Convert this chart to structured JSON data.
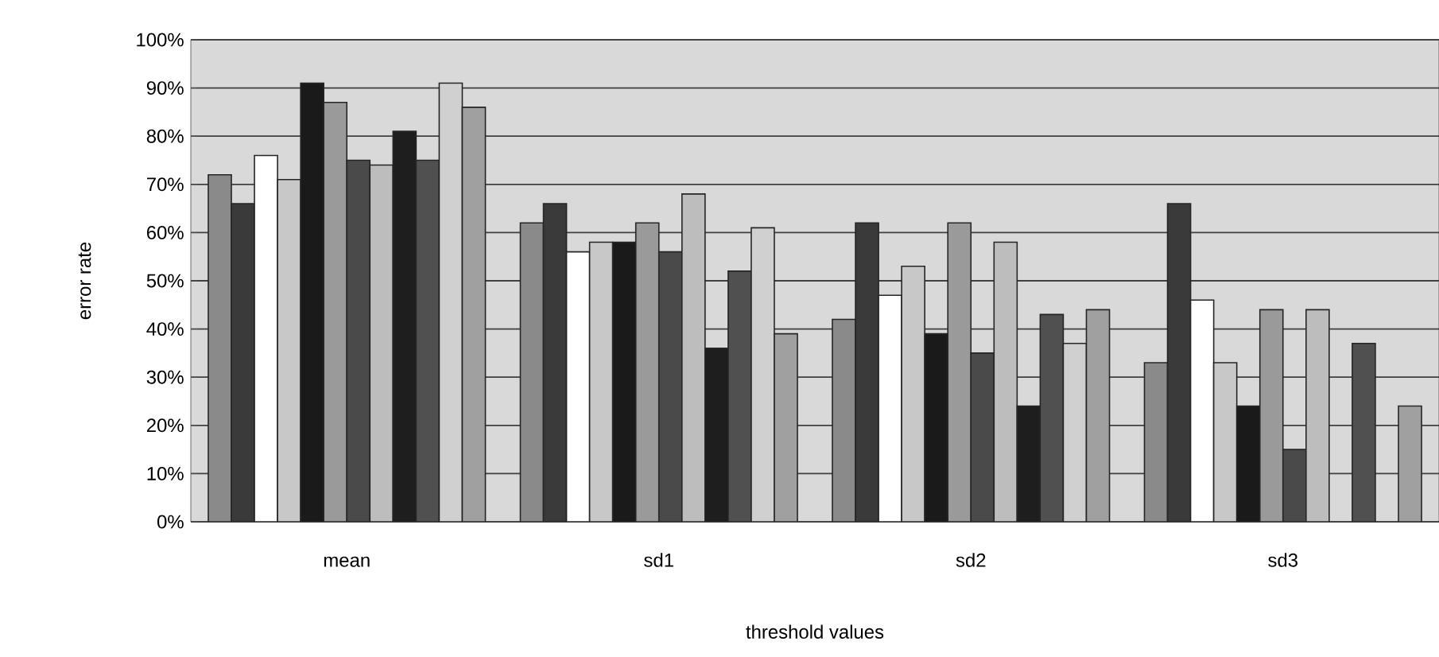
{
  "chart_data": {
    "type": "bar",
    "xlabel": "threshold values",
    "ylabel": "error rate",
    "categories": [
      "mean",
      "sd1",
      "sd2",
      "sd3"
    ],
    "ylim": [
      0,
      100
    ],
    "yticks": [
      {
        "value": 0,
        "label": "0%"
      },
      {
        "value": 10,
        "label": "10%"
      },
      {
        "value": 20,
        "label": "20%"
      },
      {
        "value": 30,
        "label": "30%"
      },
      {
        "value": 40,
        "label": "40%"
      },
      {
        "value": 50,
        "label": "50%"
      },
      {
        "value": 60,
        "label": "60%"
      },
      {
        "value": 70,
        "label": "70%"
      },
      {
        "value": 80,
        "label": "80%"
      },
      {
        "value": 90,
        "label": "90%"
      },
      {
        "value": 100,
        "label": "100%"
      }
    ],
    "grid": "y",
    "series": [
      {
        "color": "#8a8a8a",
        "values": [
          72,
          62,
          42,
          33
        ]
      },
      {
        "color": "#3a3a3a",
        "values": [
          66,
          66,
          62,
          66
        ]
      },
      {
        "color": "#ffffff",
        "values": [
          76,
          56,
          47,
          46
        ]
      },
      {
        "color": "#c8c8c8",
        "values": [
          71,
          58,
          53,
          33
        ]
      },
      {
        "color": "#1a1a1a",
        "values": [
          91,
          58,
          39,
          24
        ]
      },
      {
        "color": "#9a9a9a",
        "values": [
          87,
          62,
          62,
          44
        ]
      },
      {
        "color": "#4a4a4a",
        "values": [
          75,
          56,
          35,
          15
        ]
      },
      {
        "color": "#bdbdbd",
        "values": [
          74,
          68,
          58,
          44
        ]
      },
      {
        "color": "#1e1e1e",
        "values": [
          81,
          36,
          24,
          null
        ]
      },
      {
        "color": "#505050",
        "values": [
          75,
          52,
          43,
          37
        ]
      },
      {
        "color": "#d0d0d0",
        "values": [
          91,
          61,
          37,
          null
        ]
      },
      {
        "color": "#a0a0a0",
        "values": [
          86,
          39,
          44,
          24
        ]
      }
    ]
  }
}
